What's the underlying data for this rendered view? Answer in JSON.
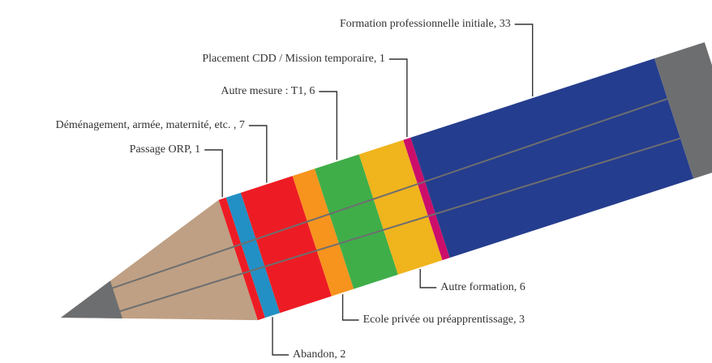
{
  "chart_data": {
    "type": "pencil",
    "categories": [
      "Passage ORP, 1",
      "Abandon, 2",
      "Déménagement, armée, maternité, etc. , 7",
      "Ecole privée ou préapprentissage, 3",
      "Autre mesure : T1, 6",
      "Autre formation, 6",
      "Placement CDD / Mission temporaire,  1",
      "Formation professionnelle initiale, 33"
    ],
    "values": [
      1,
      2,
      7,
      3,
      6,
      6,
      1,
      33
    ],
    "colors": [
      "#ed1c24",
      "#2290c4",
      "#ed1c24",
      "#f7941d",
      "#3fae49",
      "#f0b41c",
      "#cc0e6b",
      "#253d8e"
    ]
  }
}
